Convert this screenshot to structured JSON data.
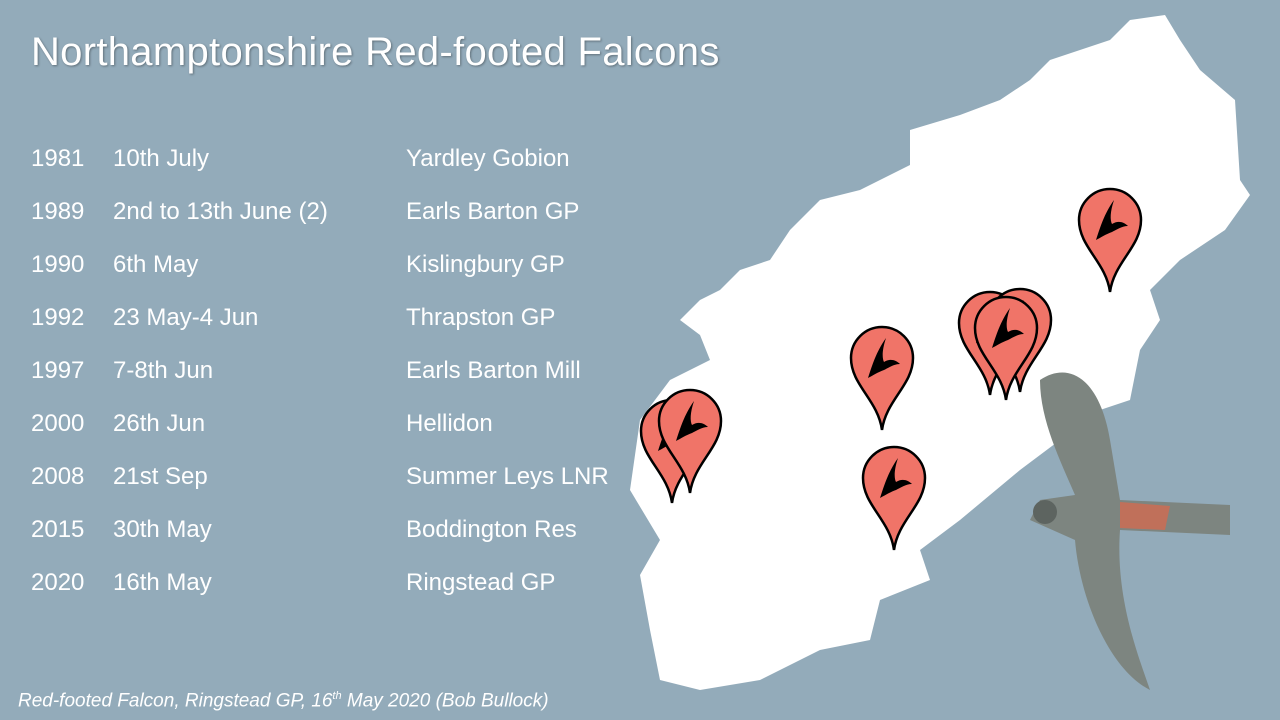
{
  "title": "Northamptonshire Red-footed Falcons",
  "records": [
    {
      "year": "1981",
      "date": "10th July",
      "site": "Yardley Gobion"
    },
    {
      "year": "1989",
      "date": "2nd to 13th June (2)",
      "site": "Earls Barton GP"
    },
    {
      "year": "1990",
      "date": "6th May",
      "site": "Kislingbury GP"
    },
    {
      "year": "1992",
      "date": "23 May-4 Jun",
      "site": "Thrapston GP"
    },
    {
      "year": "1997",
      "date": "7-8th Jun",
      "site": "Earls Barton Mill"
    },
    {
      "year": "2000",
      "date": "26th Jun",
      "site": "Hellidon"
    },
    {
      "year": "2008",
      "date": "21st Sep",
      "site": "Summer Leys LNR"
    },
    {
      "year": "2015",
      "date": "30th May",
      "site": "Boddington Res"
    },
    {
      "year": "2020",
      "date": "16th May",
      "site": "Ringstead GP"
    }
  ],
  "caption": {
    "pre": "Red-footed Falcon, Ringstead GP, 16",
    "sup": "th",
    "post": " May 2020 (Bob Bullock)"
  },
  "colors": {
    "background": "#93abba",
    "pin": "#f07468",
    "map": "#ffffff"
  },
  "icons": {
    "pin": "map-pin-falcon-icon"
  }
}
